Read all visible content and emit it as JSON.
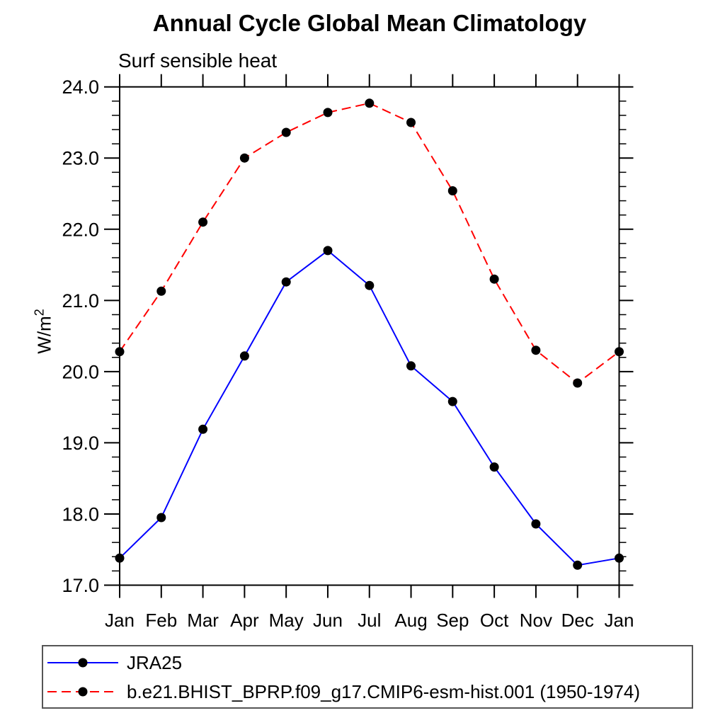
{
  "header": {
    "title": "Annual Cycle Global Mean Climatology",
    "subtitle": "Surf sensible heat"
  },
  "chart_data": {
    "type": "line",
    "title": "Annual Cycle Global Mean Climatology",
    "subtitle": "Surf sensible heat",
    "ylabel_base": "W/m",
    "ylabel_exponent": "2",
    "xlabel": "",
    "categories": [
      "Jan",
      "Feb",
      "Mar",
      "Apr",
      "May",
      "Jun",
      "Jul",
      "Aug",
      "Sep",
      "Oct",
      "Nov",
      "Dec",
      "Jan"
    ],
    "ylim": [
      17.0,
      24.0
    ],
    "ytick_values": [
      17,
      18,
      19,
      20,
      21,
      22,
      23,
      24
    ],
    "ytick_labels": [
      "17.0",
      "18.0",
      "19.0",
      "20.0",
      "21.0",
      "22.0",
      "23.0",
      "24.0"
    ],
    "ytick_minor_step": 0.2,
    "grid": false,
    "legend_position": "bottom-left-box",
    "series": [
      {
        "name": "JRA25",
        "color": "#0000ff",
        "line_style": "solid",
        "marker": "filled-circle",
        "marker_color": "#000000",
        "values": [
          17.38,
          17.95,
          19.19,
          20.22,
          21.26,
          21.7,
          21.21,
          20.08,
          19.58,
          18.66,
          17.86,
          17.28,
          17.38
        ]
      },
      {
        "name": "b.e21.BHIST_BPRP.f09_g17.CMIP6-esm-hist.001 (1950-1974)",
        "color": "#ff0000",
        "line_style": "dashed",
        "marker": "filled-circle",
        "marker_color": "#000000",
        "values": [
          20.28,
          21.13,
          22.1,
          23.0,
          23.36,
          23.64,
          23.77,
          23.5,
          22.54,
          21.3,
          20.3,
          19.84,
          20.28
        ]
      }
    ]
  },
  "legend": {
    "items": [
      {
        "label": "JRA25",
        "color": "#0000ff",
        "dash": "solid"
      },
      {
        "label": "b.e21.BHIST_BPRP.f09_g17.CMIP6-esm-hist.001 (1950-1974)",
        "color": "#ff0000",
        "dash": "dashed"
      }
    ]
  },
  "colors": {
    "axis": "#000000",
    "marker": "#000000",
    "series_jra25": "#0000ff",
    "series_model": "#ff0000",
    "legend_border": "#555555",
    "background": "#ffffff"
  }
}
